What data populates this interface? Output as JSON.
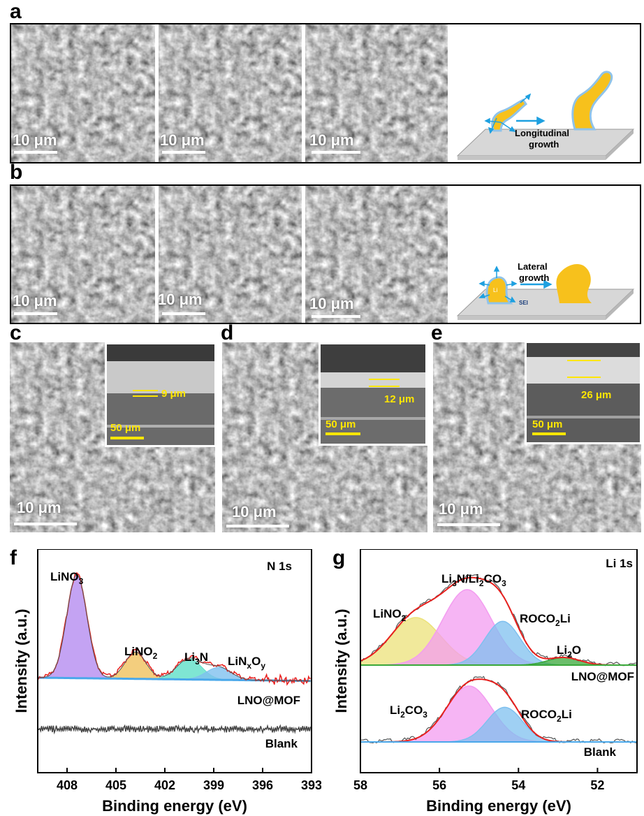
{
  "panels": {
    "a": "a",
    "b": "b",
    "c": "c",
    "d": "d",
    "e": "e",
    "f": "f",
    "g": "g"
  },
  "scale_bars": {
    "ten_um": "10 μm",
    "fifty_um": "50 μm"
  },
  "thickness": {
    "c": "9 μm",
    "d": "12 μm",
    "e": "26 μm"
  },
  "schematic_a": {
    "label1": "Longitudinal",
    "label2": "growth"
  },
  "schematic_b": {
    "label1": "Lateral",
    "label2": "growth",
    "li": "Li",
    "sei": "SEI"
  },
  "colors": {
    "li_metal": "#f7c11c",
    "sei": "#8fc3ea",
    "arrow": "#1ea0e0",
    "substrate": "#d7d7d7",
    "fit_line": "#e8201e"
  },
  "chart_data": [
    {
      "type": "area",
      "panel": "f",
      "corner_label": "N 1s",
      "xlabel": "Binding energy (eV)",
      "ylabel": "Intensity (a.u.)",
      "x_ticks": [
        408,
        405,
        402,
        399,
        396,
        393
      ],
      "xlim": [
        409.8,
        393
      ],
      "x_reversed": true,
      "peaks": [
        {
          "name": "LiNO3",
          "display": "LiNO",
          "sub": "3",
          "center": 407.4,
          "height": 1.0,
          "fwhm": 1.45,
          "color": "#b58cf0"
        },
        {
          "name": "LiNO2",
          "display": "LiNO",
          "sub": "2",
          "center": 403.8,
          "height": 0.26,
          "fwhm": 1.5,
          "color": "#f0c25e"
        },
        {
          "name": "Li3N",
          "display": "Li",
          "sub": "3",
          "tail": "N",
          "center": 400.5,
          "height": 0.2,
          "fwhm": 1.8,
          "color": "#5fe0c8"
        },
        {
          "name": "LiNxOy",
          "display": "LiN",
          "sub": "x",
          "tail": "O",
          "sub2": "y",
          "center": 398.7,
          "height": 0.12,
          "fwhm": 1.8,
          "color": "#7fc0ef"
        }
      ],
      "series": [
        {
          "name": "LNO@MOF"
        },
        {
          "name": "Blank"
        }
      ]
    },
    {
      "type": "area",
      "panel": "g",
      "corner_label": "Li 1s",
      "xlabel": "Binding energy (eV)",
      "ylabel": "Intensity (a.u.)",
      "x_ticks": [
        58,
        56,
        54,
        52
      ],
      "xlim": [
        58,
        51
      ],
      "x_reversed": true,
      "peaks_top": [
        {
          "name": "LiNO2",
          "display": "LiNO",
          "sub": "2",
          "center": 56.6,
          "height": 0.63,
          "fwhm": 1.5,
          "color": "#ece27a"
        },
        {
          "name": "Li3N/Li2CO3",
          "display": "Li3N/Li2CO3",
          "center": 55.3,
          "height": 1.0,
          "fwhm": 1.45,
          "color": "#f39cf0"
        },
        {
          "name": "ROCO2Li",
          "display": "ROCO2Li",
          "center": 54.4,
          "height": 0.58,
          "fwhm": 1.05,
          "color": "#7fc0ef"
        },
        {
          "name": "Li2O",
          "display": "Li",
          "sub": "2",
          "tail": "O",
          "center": 52.85,
          "height": 0.1,
          "fwhm": 0.95,
          "color": "#3aa83a"
        }
      ],
      "peaks_bottom": [
        {
          "name": "Li2CO3",
          "display": "Li2CO3",
          "center": 55.25,
          "height": 1.0,
          "fwhm": 1.35,
          "color": "#f39cf0"
        },
        {
          "name": "ROCO2Li",
          "display": "ROCO2Li",
          "center": 54.35,
          "height": 0.62,
          "fwhm": 1.05,
          "color": "#7fc0ef"
        }
      ],
      "series": [
        {
          "name": "LNO@MOF"
        },
        {
          "name": "Blank"
        }
      ]
    }
  ]
}
